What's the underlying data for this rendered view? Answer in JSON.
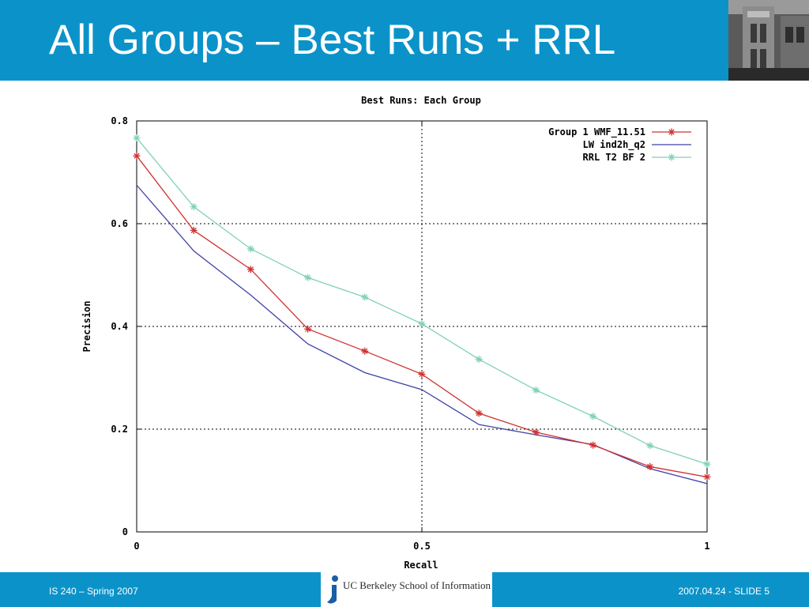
{
  "slide": {
    "title": "All Groups – Best Runs + RRL",
    "footer_left": "IS 240 – Spring 2007",
    "footer_right": "2007.04.24 - SLIDE 5",
    "logo_text": "UC Berkeley School of Information",
    "colors": {
      "header": "#0b93c9",
      "text": "#ffffff"
    }
  },
  "chart_data": {
    "type": "line",
    "title": "Best Runs: Each Group",
    "xlabel": "Recall",
    "ylabel": "Precision",
    "xlim": [
      0,
      1
    ],
    "ylim": [
      0,
      0.8
    ],
    "xticks": [
      0,
      0.5,
      1
    ],
    "xtick_labels": [
      "0",
      "0.5",
      "1"
    ],
    "yticks": [
      0,
      0.2,
      0.4,
      0.6,
      0.8
    ],
    "ytick_labels": [
      "0",
      "0.2",
      "0.4",
      "0.6",
      "0.8"
    ],
    "grid": true,
    "legend_position": "top-right",
    "x": [
      0,
      0.1,
      0.2,
      0.3,
      0.4,
      0.5,
      0.6,
      0.7,
      0.8,
      0.9,
      1.0
    ],
    "series": [
      {
        "name": "Group 1 WMF_11.51",
        "color": "#d03030",
        "marker": "star",
        "values": [
          0.732,
          0.587,
          0.511,
          0.395,
          0.352,
          0.307,
          0.231,
          0.194,
          0.169,
          0.127,
          0.107
        ]
      },
      {
        "name": "LW ind2h_q2",
        "color": "#4040a8",
        "marker": "none",
        "values": [
          0.675,
          0.547,
          0.461,
          0.366,
          0.31,
          0.277,
          0.209,
          0.189,
          0.17,
          0.123,
          0.094
        ]
      },
      {
        "name": "RRL T2 BF 2",
        "color": "#7fd1b9",
        "marker": "star",
        "values": [
          0.767,
          0.633,
          0.551,
          0.495,
          0.457,
          0.405,
          0.336,
          0.276,
          0.225,
          0.168,
          0.132
        ]
      }
    ]
  }
}
